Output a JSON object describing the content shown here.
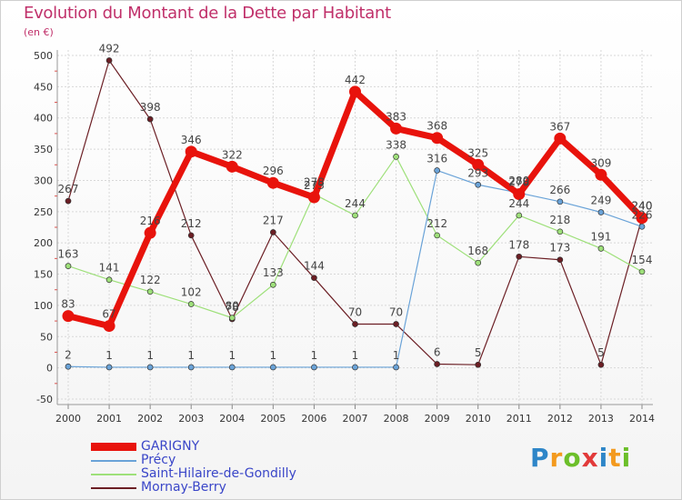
{
  "title": "Evolution du Montant de la Dette par Habitant",
  "unit_label": "(en €)",
  "logo_letters": [
    {
      "ch": "P",
      "color": "#2e86c8"
    },
    {
      "ch": "r",
      "color": "#f39a1e"
    },
    {
      "ch": "o",
      "color": "#6cbf2a"
    },
    {
      "ch": "x",
      "color": "#e23a3a"
    },
    {
      "ch": "i",
      "color": "#2e86c8"
    },
    {
      "ch": "t",
      "color": "#f39a1e"
    },
    {
      "ch": "i",
      "color": "#6cbf2a"
    }
  ],
  "chart_data": {
    "type": "line",
    "title": "Evolution du Montant de la Dette par Habitant",
    "ylabel": "(en €)",
    "xlabel": "",
    "ylim": [
      -50,
      500
    ],
    "yticks": [
      -50,
      0,
      50,
      100,
      150,
      200,
      250,
      300,
      350,
      400,
      450,
      500
    ],
    "grid": true,
    "categories": [
      "2000",
      "2001",
      "2002",
      "2003",
      "2004",
      "2005",
      "2006",
      "2007",
      "2008",
      "2009",
      "2010",
      "2011",
      "2012",
      "2013",
      "2014"
    ],
    "series": [
      {
        "name": "Mornay-Berry",
        "color": "#6b1e24",
        "width": 1.2,
        "marker": 3,
        "values": [
          267,
          492,
          398,
          212,
          78,
          217,
          144,
          70,
          70,
          6,
          5,
          178,
          173,
          5,
          240
        ]
      },
      {
        "name": "Saint-Hilaire-de-Gondilly",
        "color": "#9ee07a",
        "width": 1.2,
        "marker": 3,
        "values": [
          163,
          141,
          122,
          102,
          80,
          133,
          278,
          244,
          338,
          212,
          168,
          244,
          218,
          191,
          154
        ]
      },
      {
        "name": "Précy",
        "color": "#6aa3d8",
        "width": 1.2,
        "marker": 3,
        "values": [
          2,
          1,
          1,
          1,
          1,
          1,
          1,
          1,
          1,
          316,
          293,
          280,
          266,
          249,
          226
        ]
      },
      {
        "name": "GARIGNY",
        "color": "#e8130c",
        "width": 7,
        "marker": 6.5,
        "values": [
          83,
          67,
          216,
          346,
          322,
          296,
          273,
          442,
          383,
          368,
          325,
          278,
          367,
          309,
          240
        ]
      }
    ],
    "legend": [
      "GARIGNY",
      "Précy",
      "Saint-Hilaire-de-Gondilly",
      "Mornay-Berry"
    ],
    "legend_position": "bottom-left"
  }
}
